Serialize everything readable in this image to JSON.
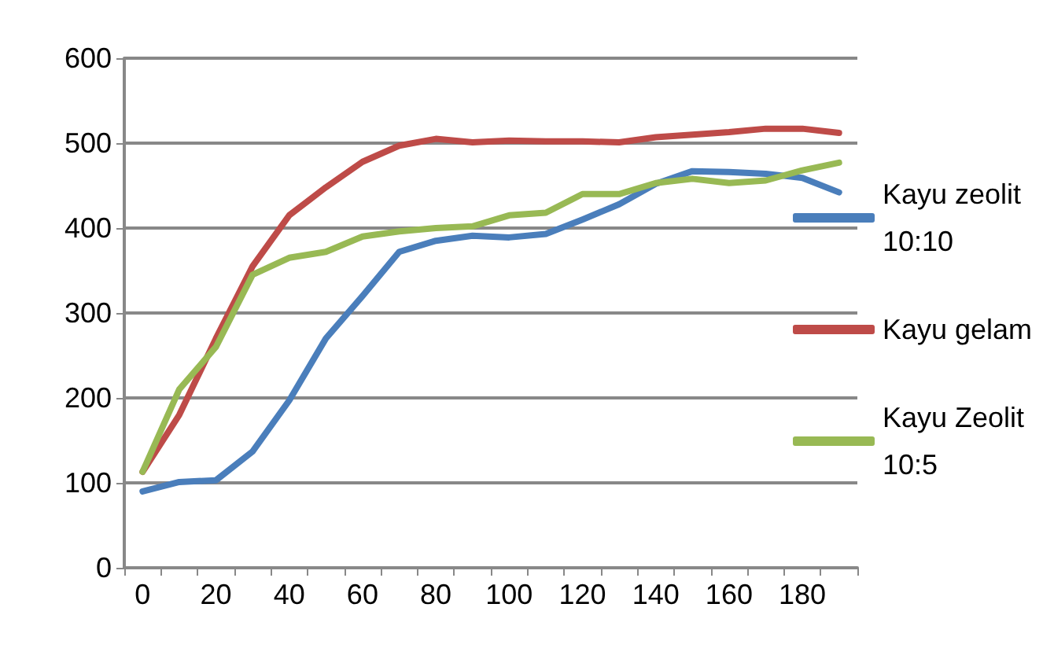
{
  "chart_data": {
    "type": "line",
    "categories": [
      "0",
      null,
      "20",
      null,
      "40",
      null,
      "60",
      null,
      "80",
      null,
      "100",
      null,
      "120",
      null,
      "140",
      null,
      "160",
      null,
      "180",
      null
    ],
    "series": [
      {
        "name": "Kayu zeolit 10:10",
        "color": "#4a7ebb",
        "values": [
          90,
          101,
          103,
          137,
          197,
          270,
          320,
          372,
          385,
          391,
          389,
          393,
          410,
          428,
          452,
          467,
          466,
          464,
          459,
          442
        ]
      },
      {
        "name": "Kayu gelam",
        "color": "#be4b48",
        "values": [
          113,
          180,
          270,
          355,
          415,
          448,
          478,
          497,
          505,
          501,
          503,
          502,
          502,
          501,
          507,
          510,
          513,
          517,
          517,
          512
        ]
      },
      {
        "name": "Kayu Zeolit 10:5",
        "color": "#98b954",
        "values": [
          113,
          210,
          260,
          345,
          365,
          372,
          390,
          396,
          400,
          402,
          415,
          418,
          440,
          440,
          453,
          458,
          453,
          456,
          468,
          477
        ]
      }
    ],
    "ylim": [
      0,
      600
    ],
    "yticks": [
      0,
      100,
      200,
      300,
      400,
      500,
      600
    ],
    "grid": "y",
    "legend": "right",
    "marker": "none",
    "line_style": "solid"
  }
}
